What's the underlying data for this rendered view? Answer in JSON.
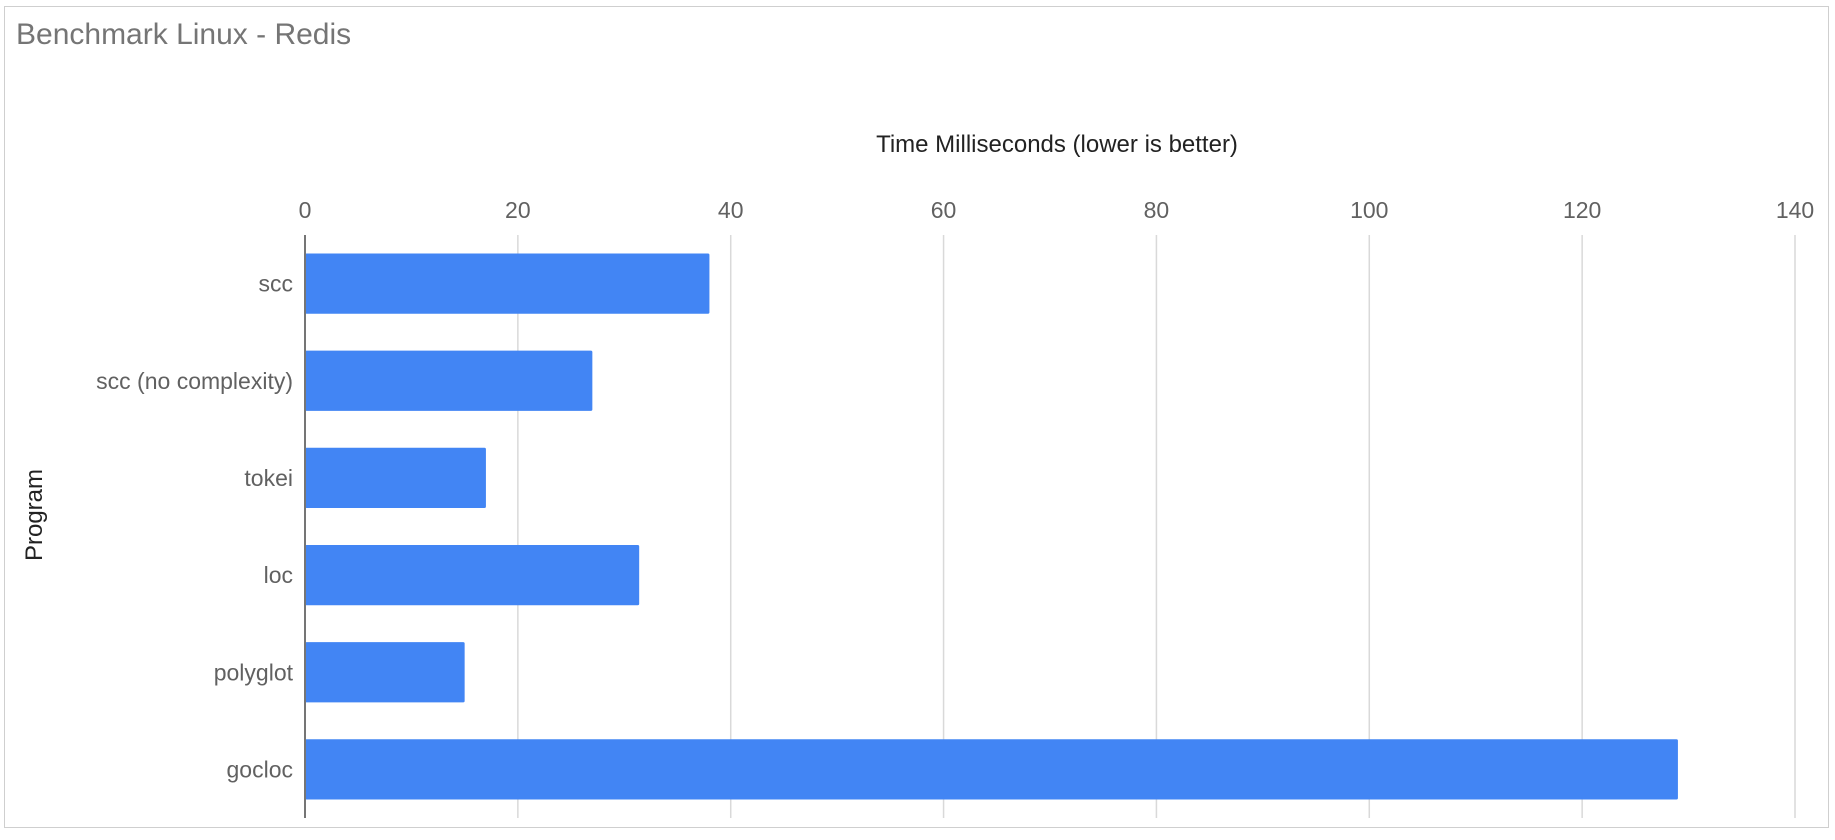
{
  "chart_data": {
    "type": "bar",
    "orientation": "horizontal",
    "title": "Benchmark Linux - Redis",
    "xlabel": "Time Milliseconds (lower is better)",
    "ylabel": "Program",
    "categories": [
      "scc",
      "scc (no complexity)",
      "tokei",
      "loc",
      "polyglot",
      "gocloc"
    ],
    "values": [
      38,
      27,
      17,
      31.4,
      15,
      129
    ],
    "xlim": [
      0,
      140
    ],
    "xticks": [
      "0",
      "20",
      "40",
      "60",
      "80",
      "100",
      "120",
      "140"
    ],
    "grid": true,
    "legend": "none",
    "bar_color": "#4285f4",
    "axis_position": "top"
  }
}
